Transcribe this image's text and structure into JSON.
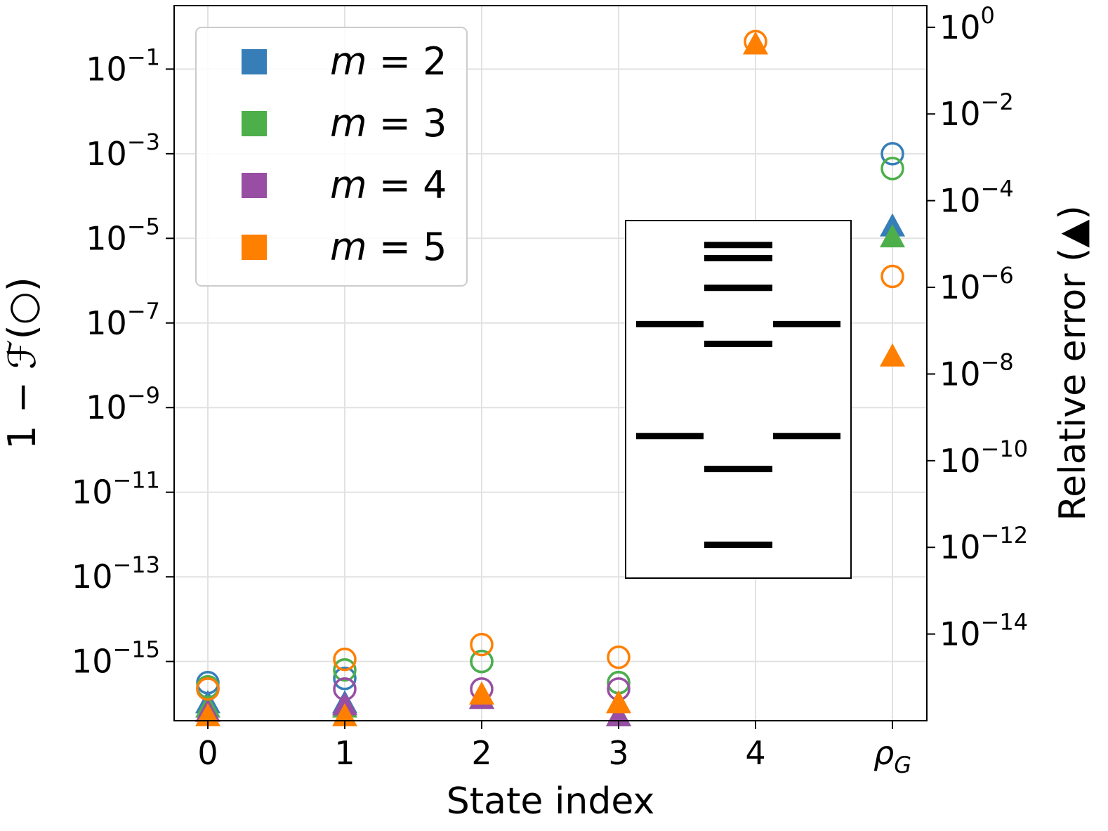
{
  "chart_data": {
    "type": "scatter",
    "xlabel": "State index",
    "ylabel_left": "1 − ℱ(○)",
    "ylabel_right": "Relative error (▲)",
    "y_scale": "log",
    "x_categories": [
      "0",
      "1",
      "2",
      "3",
      "4",
      "ρ"
    ],
    "x_last_subscript": "G",
    "left_axis": {
      "ylim_log10": [
        -16.4,
        0.5
      ],
      "ticks": [
        {
          "exp": -1,
          "base": "10",
          "sup": "−1"
        },
        {
          "exp": -3,
          "base": "10",
          "sup": "−3"
        },
        {
          "exp": -5,
          "base": "10",
          "sup": "−5"
        },
        {
          "exp": -7,
          "base": "10",
          "sup": "−7"
        },
        {
          "exp": -9,
          "base": "10",
          "sup": "−9"
        },
        {
          "exp": -11,
          "base": "10",
          "sup": "−11"
        },
        {
          "exp": -13,
          "base": "10",
          "sup": "−13"
        },
        {
          "exp": -15,
          "base": "10",
          "sup": "−15"
        }
      ]
    },
    "right_axis": {
      "ylim_log10": [
        -16.0,
        0.5
      ],
      "ticks": [
        {
          "exp": 0,
          "base": "10",
          "sup": "0"
        },
        {
          "exp": -2,
          "base": "10",
          "sup": "−2"
        },
        {
          "exp": -4,
          "base": "10",
          "sup": "−4"
        },
        {
          "exp": -6,
          "base": "10",
          "sup": "−6"
        },
        {
          "exp": -8,
          "base": "10",
          "sup": "−8"
        },
        {
          "exp": -10,
          "base": "10",
          "sup": "−10"
        },
        {
          "exp": -12,
          "base": "10",
          "sup": "−12"
        },
        {
          "exp": -14,
          "base": "10",
          "sup": "−14"
        }
      ]
    },
    "series": [
      {
        "name": "m = 2",
        "var": "m",
        "eq": " = 2",
        "color": "#377eb8",
        "infidelity_log10": [
          [
            0,
            -15.5
          ],
          [
            1,
            -15.4
          ],
          [
            2,
            -15.0
          ],
          [
            3,
            -15.5
          ],
          [
            5,
            -3.0
          ]
        ],
        "relative_error_log10": [
          [
            0,
            -15.6
          ],
          [
            1,
            -15.6
          ],
          [
            2,
            -15.5
          ],
          [
            3,
            -15.9
          ],
          [
            5,
            -4.6
          ]
        ]
      },
      {
        "name": "m = 3",
        "var": "m",
        "eq": " = 3",
        "color": "#4daf4a",
        "infidelity_log10": [
          [
            0,
            -15.6
          ],
          [
            1,
            -15.2
          ],
          [
            2,
            -15.0
          ],
          [
            3,
            -15.5
          ],
          [
            5,
            -3.35
          ]
        ],
        "relative_error_log10": [
          [
            0,
            -15.7
          ],
          [
            1,
            -15.7
          ],
          [
            2,
            -15.5
          ],
          [
            3,
            -15.9
          ],
          [
            5,
            -4.85
          ]
        ]
      },
      {
        "name": "m = 4",
        "var": "m",
        "eq": " = 4",
        "color": "#984ea3",
        "infidelity_log10": [
          [
            0,
            -15.65
          ],
          [
            1,
            -15.65
          ],
          [
            2,
            -15.65
          ],
          [
            3,
            -15.65
          ]
        ],
        "relative_error_log10": [
          [
            0,
            -15.8
          ],
          [
            1,
            -15.65
          ],
          [
            2,
            -15.5
          ],
          [
            3,
            -15.9
          ]
        ]
      },
      {
        "name": "m = 5",
        "var": "m",
        "eq": " = 5",
        "color": "#ff7f00",
        "infidelity_log10": [
          [
            0,
            -15.65
          ],
          [
            1,
            -14.95
          ],
          [
            2,
            -14.6
          ],
          [
            3,
            -14.9
          ],
          [
            4,
            -0.35
          ],
          [
            5,
            -5.9
          ]
        ],
        "relative_error_log10": [
          [
            0,
            -15.9
          ],
          [
            1,
            -15.9
          ],
          [
            2,
            -15.4
          ],
          [
            3,
            -15.6
          ],
          [
            4,
            -0.4
          ],
          [
            5,
            -7.6
          ]
        ]
      }
    ],
    "legend": {
      "placement": "top-left"
    },
    "inset": {
      "description": "energy level diagram",
      "columns": [
        "left",
        "center",
        "right"
      ],
      "levels": [
        {
          "column": "center",
          "energy": 0.96
        },
        {
          "column": "center",
          "energy": 0.92
        },
        {
          "column": "center",
          "energy": 0.83
        },
        {
          "column": "left",
          "energy": 0.72
        },
        {
          "column": "right",
          "energy": 0.72
        },
        {
          "column": "center",
          "energy": 0.66
        },
        {
          "column": "left",
          "energy": 0.38
        },
        {
          "column": "right",
          "energy": 0.38
        },
        {
          "column": "center",
          "energy": 0.28
        },
        {
          "column": "center",
          "energy": 0.05
        }
      ]
    },
    "grid": true
  }
}
